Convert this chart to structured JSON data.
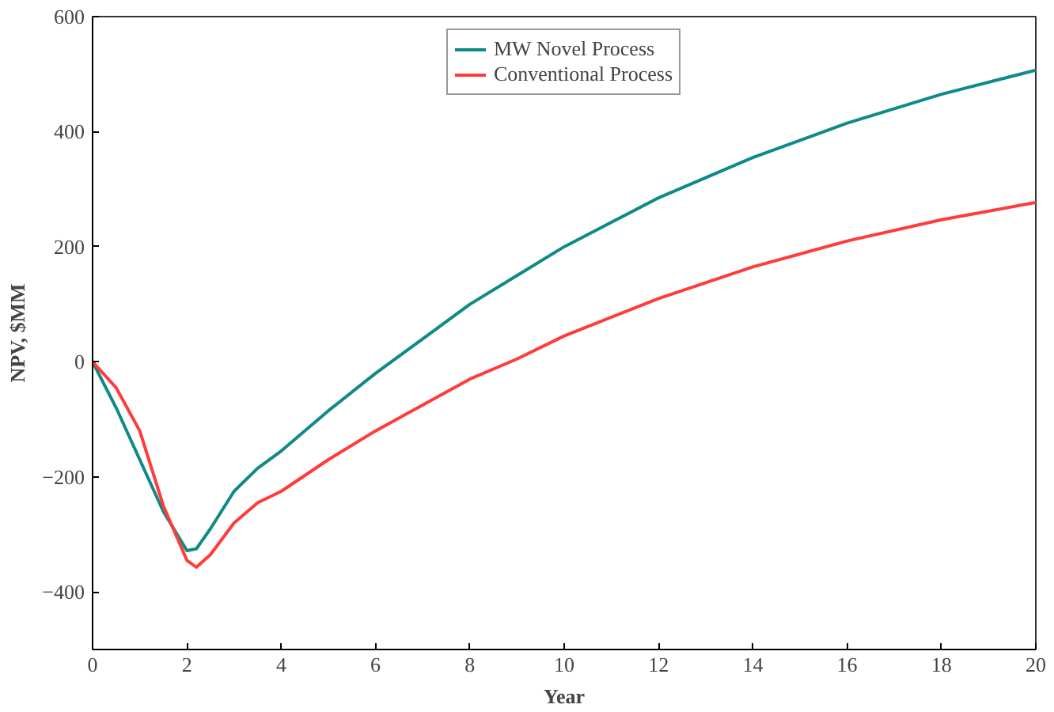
{
  "chart_data": {
    "type": "line",
    "xlabel": "Year",
    "ylabel": "NPV, $MM",
    "x": [
      0,
      0.5,
      1,
      1.5,
      2,
      2.2,
      2.5,
      3,
      3.5,
      4,
      5,
      6,
      7,
      8,
      9,
      10,
      12,
      14,
      16,
      18,
      20
    ],
    "series": [
      {
        "name": "MW Novel Process",
        "color": "#0f8a87",
        "values": [
          0,
          -80,
          -170,
          -260,
          -328,
          -325,
          -290,
          -225,
          -185,
          -155,
          -85,
          -20,
          40,
          100,
          150,
          200,
          285,
          355,
          415,
          465,
          507
        ]
      },
      {
        "name": "Conventional Process",
        "color": "#ff3b3b",
        "values": [
          0,
          -45,
          -120,
          -250,
          -345,
          -357,
          -335,
          -280,
          -245,
          -225,
          -170,
          -120,
          -75,
          -30,
          5,
          45,
          110,
          165,
          210,
          247,
          277
        ]
      }
    ],
    "xlim": [
      0,
      20
    ],
    "ylim": [
      -500,
      600
    ],
    "xticks": [
      0,
      2,
      4,
      6,
      8,
      10,
      12,
      14,
      16,
      18,
      20
    ],
    "yticks": [
      -400,
      -200,
      0,
      200,
      400,
      600
    ],
    "grid": false,
    "legend": "top",
    "line_style": "solid",
    "marker": "none"
  }
}
